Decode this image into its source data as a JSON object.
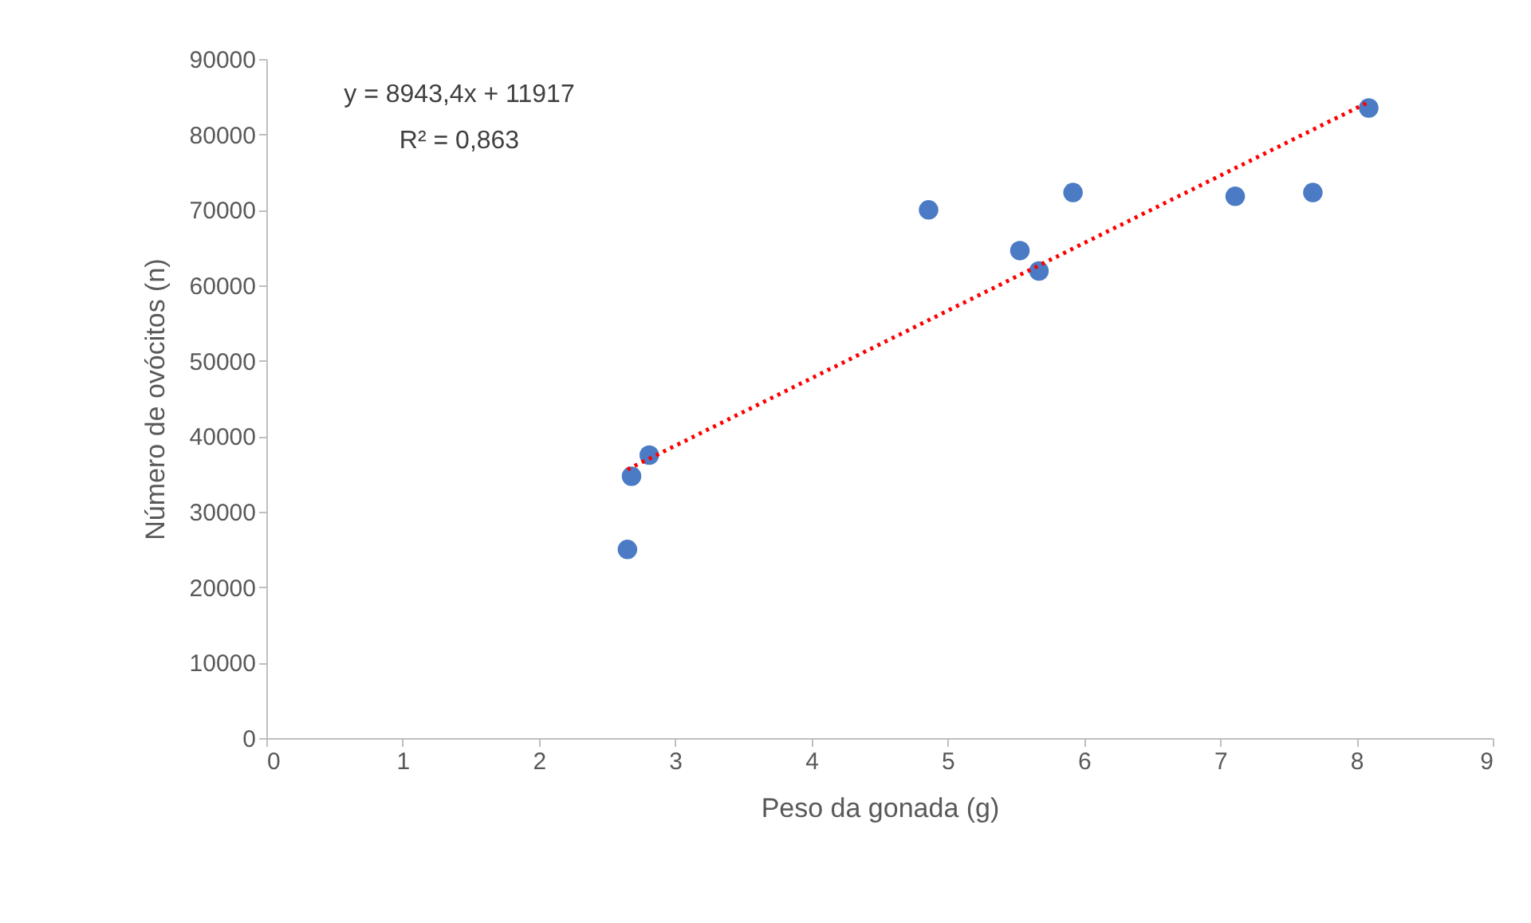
{
  "chart_data": {
    "type": "scatter",
    "xlabel": "Peso da gonada (g)",
    "ylabel": "Número de ovócitos (n)",
    "annotations": [
      "y = 8943,4x + 11917",
      "R² = 0,863"
    ],
    "xlim": [
      0,
      9
    ],
    "xticks": [
      0,
      1,
      2,
      3,
      4,
      5,
      6,
      7,
      8,
      9
    ],
    "ylim": [
      0,
      90000
    ],
    "yticks": [
      0,
      10000,
      20000,
      30000,
      40000,
      50000,
      60000,
      70000,
      80000,
      90000
    ],
    "series": [
      {
        "type": "scatter",
        "color": "#4a7bc4",
        "marker": "circle",
        "x": [
          2.65,
          2.68,
          2.81,
          4.86,
          5.53,
          5.67,
          5.92,
          7.11,
          7.68,
          8.09
        ],
        "values": [
          25000,
          34700,
          37500,
          70000,
          64600,
          61900,
          72300,
          71800,
          72300,
          83500
        ]
      },
      {
        "type": "line",
        "color": "#ff0000",
        "line_style": "dotted",
        "marker": "none",
        "x": [
          2.65,
          8.09
        ],
        "values": [
          35600,
          84300
        ]
      }
    ]
  }
}
